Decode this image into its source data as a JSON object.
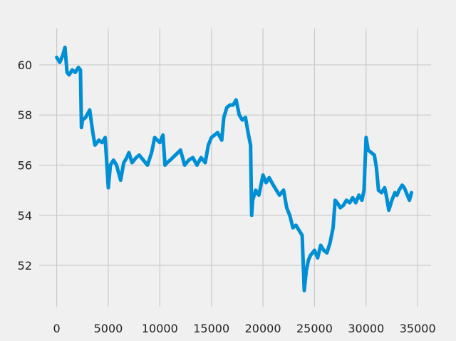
{
  "chart_data": {
    "type": "line",
    "title": "",
    "xlabel": "",
    "ylabel": "",
    "xlim": [
      -1700,
      36300
    ],
    "ylim": [
      50.35,
      61.45
    ],
    "x_ticks": [
      0,
      5000,
      10000,
      15000,
      20000,
      25000,
      30000,
      35000
    ],
    "x_tick_labels": [
      "0",
      "5000",
      "10000",
      "15000",
      "20000",
      "25000",
      "30000",
      "35000"
    ],
    "y_ticks": [
      52,
      54,
      56,
      58,
      60
    ],
    "y_tick_labels": [
      "52",
      "54",
      "56",
      "58",
      "60"
    ],
    "grid": true,
    "style": "fivethirtyeight",
    "series": [
      {
        "color": "#008fd5",
        "x": [
          0,
          300,
          600,
          800,
          1000,
          1200,
          1500,
          1800,
          2100,
          2300,
          2400,
          2500,
          2800,
          3200,
          3500,
          3700,
          3900,
          4100,
          4400,
          4700,
          4900,
          5000,
          5200,
          5500,
          5800,
          6000,
          6200,
          6500,
          6800,
          7000,
          7300,
          7700,
          8000,
          8400,
          8800,
          9200,
          9500,
          10000,
          10300,
          10500,
          10700,
          11000,
          11500,
          12000,
          12400,
          12800,
          13200,
          13600,
          14000,
          14400,
          14700,
          15000,
          15300,
          15600,
          16000,
          16200,
          16500,
          16800,
          17100,
          17400,
          17700,
          18000,
          18300,
          18600,
          18800,
          18900,
          19000,
          19300,
          19600,
          20000,
          20300,
          20600,
          21000,
          21300,
          21600,
          22000,
          22300,
          22600,
          22900,
          23200,
          23500,
          23800,
          24000,
          24200,
          24400,
          24600,
          24800,
          25000,
          25300,
          25600,
          25900,
          26200,
          26500,
          26800,
          27000,
          27200,
          27500,
          27800,
          28100,
          28400,
          28700,
          29000,
          29300,
          29600,
          29800,
          30000,
          30200,
          30500,
          30800,
          31000,
          31200,
          31500,
          31800,
          32000,
          32200,
          32500,
          32800,
          33000,
          33200,
          33500,
          33700,
          34000,
          34200,
          34400
        ],
        "y": [
          60.3,
          60.1,
          60.4,
          60.7,
          59.7,
          59.6,
          59.8,
          59.7,
          59.9,
          59.8,
          57.5,
          57.8,
          57.9,
          58.2,
          57.3,
          56.8,
          56.9,
          57.0,
          56.9,
          57.1,
          55.8,
          55.1,
          56.0,
          56.2,
          56.0,
          55.7,
          55.4,
          56.1,
          56.3,
          56.5,
          56.1,
          56.3,
          56.4,
          56.2,
          56.0,
          56.5,
          57.1,
          56.9,
          57.2,
          56.0,
          56.1,
          56.2,
          56.4,
          56.6,
          56.0,
          56.2,
          56.3,
          56.0,
          56.3,
          56.1,
          56.8,
          57.1,
          57.2,
          57.3,
          57.0,
          57.9,
          58.3,
          58.4,
          58.4,
          58.6,
          58.0,
          57.8,
          57.9,
          57.2,
          56.8,
          54.0,
          54.6,
          55.0,
          54.8,
          55.6,
          55.3,
          55.5,
          55.2,
          55.0,
          54.8,
          55.0,
          54.3,
          54.0,
          53.5,
          53.6,
          53.4,
          53.2,
          51.0,
          51.8,
          52.2,
          52.4,
          52.5,
          52.6,
          52.3,
          52.8,
          52.6,
          52.5,
          52.9,
          53.5,
          54.6,
          54.5,
          54.3,
          54.4,
          54.6,
          54.5,
          54.7,
          54.5,
          54.8,
          54.6,
          55.0,
          57.1,
          56.6,
          56.5,
          56.4,
          55.9,
          55.0,
          54.9,
          55.1,
          54.7,
          54.2,
          54.6,
          54.9,
          54.8,
          55.0,
          55.2,
          55.1,
          54.8,
          54.6,
          54.9
        ]
      }
    ]
  }
}
